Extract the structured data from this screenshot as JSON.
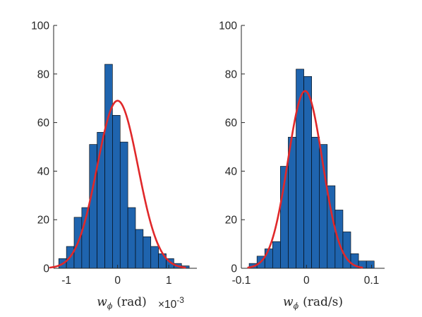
{
  "colors": {
    "bar": "#1f64ae",
    "fit": "#e0282a",
    "axis": "#262626"
  },
  "chart_data": [
    {
      "type": "bar",
      "subtype": "histogram-with-normal-fit",
      "title": "",
      "xlabel_symbol": "w",
      "xlabel_sub": "ϕ",
      "xlabel_unit": "(rad)",
      "x_multiplier": "×10",
      "x_multiplier_exp": "-3",
      "ylabel": "",
      "xlim": [
        -1.25,
        1.55
      ],
      "ylim": [
        0,
        100
      ],
      "xticks": [
        -1,
        0,
        1
      ],
      "xtick_labels": [
        "-1",
        "0",
        "1"
      ],
      "yticks": [
        0,
        20,
        40,
        60,
        80,
        100
      ],
      "ytick_labels": [
        "0",
        "20",
        "40",
        "60",
        "80",
        "100"
      ],
      "bin_edges": [
        -1.15,
        -1.0,
        -0.85,
        -0.7,
        -0.55,
        -0.4,
        -0.25,
        -0.1,
        0.05,
        0.2,
        0.35,
        0.5,
        0.65,
        0.8,
        0.95,
        1.1,
        1.25,
        1.4
      ],
      "counts": [
        4,
        9,
        21,
        25,
        51,
        56,
        84,
        63,
        52,
        25,
        16,
        13,
        9,
        6,
        4,
        2,
        1
      ],
      "fit": {
        "mean": 0.0,
        "std": 0.4,
        "peak": 69
      }
    },
    {
      "type": "bar",
      "subtype": "histogram-with-normal-fit",
      "title": "",
      "xlabel_symbol": "w",
      "xlabel_sub": "ϕ̇",
      "xlabel_unit": "(rad/s)",
      "ylabel": "",
      "xlim": [
        -0.1,
        0.12
      ],
      "ylim": [
        0,
        100
      ],
      "xticks": [
        -0.1,
        0,
        0.1
      ],
      "xtick_labels": [
        "-0.1",
        "0",
        "0.1"
      ],
      "yticks": [
        0,
        20,
        40,
        60,
        80,
        100
      ],
      "ytick_labels": [
        "0",
        "20",
        "40",
        "60",
        "80",
        "100"
      ],
      "bin_edges": [
        -0.088,
        -0.076,
        -0.064,
        -0.052,
        -0.04,
        -0.028,
        -0.016,
        -0.004,
        0.008,
        0.02,
        0.032,
        0.044,
        0.056,
        0.068,
        0.08,
        0.092,
        0.104
      ],
      "counts": [
        2,
        5,
        8,
        11,
        42,
        54,
        82,
        79,
        54,
        51,
        34,
        24,
        15,
        6,
        3,
        3
      ],
      "fit": {
        "mean": -0.002,
        "std": 0.0265,
        "peak": 73
      }
    }
  ]
}
